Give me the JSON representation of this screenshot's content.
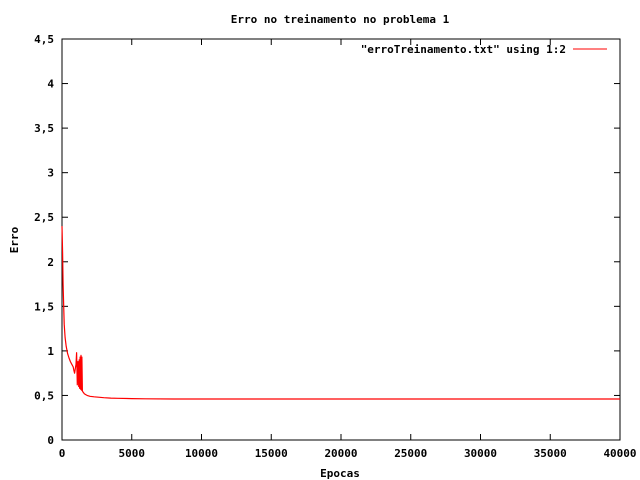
{
  "chart_data": {
    "type": "line",
    "title": "Erro no treinamento no problema 1",
    "xlabel": "Epocas",
    "ylabel": "Erro",
    "xlim": [
      0,
      40000
    ],
    "ylim": [
      0,
      4.5
    ],
    "xticks": [
      0,
      5000,
      10000,
      15000,
      20000,
      25000,
      30000,
      35000,
      40000
    ],
    "xtick_labels": [
      "0",
      "5000",
      "10000",
      "15000",
      "20000",
      "25000",
      "30000",
      "35000",
      "40000"
    ],
    "yticks": [
      0,
      0.5,
      1,
      1.5,
      2,
      2.5,
      3,
      3.5,
      4,
      4.5
    ],
    "ytick_labels": [
      "0",
      "0,5",
      "1",
      "1,5",
      "2",
      "2,5",
      "3",
      "3,5",
      "4",
      "4,5"
    ],
    "grid": false,
    "legend_position": "top-right",
    "series": [
      {
        "name": "\"erroTreinamento.txt\" using 1:2",
        "color": "#ff0000",
        "x": [
          0,
          40,
          80,
          120,
          160,
          220,
          300,
          400,
          500,
          600,
          700,
          800,
          850,
          900,
          950,
          1000,
          1050,
          1100,
          1150,
          1200,
          1230,
          1260,
          1300,
          1330,
          1360,
          1400,
          1430,
          1460,
          1500,
          1550,
          1600,
          1700,
          1800,
          2000,
          2300,
          2600,
          3000,
          3500,
          4000,
          5000,
          6000,
          8000,
          12000,
          20000,
          30000,
          40000
        ],
        "y": [
          2.4,
          2.1,
          1.75,
          1.5,
          1.3,
          1.15,
          1.05,
          0.97,
          0.92,
          0.88,
          0.85,
          0.82,
          0.78,
          0.75,
          0.8,
          0.85,
          0.98,
          0.62,
          0.88,
          0.6,
          0.9,
          0.58,
          0.93,
          0.57,
          0.95,
          0.56,
          0.93,
          0.55,
          0.54,
          0.53,
          0.52,
          0.51,
          0.5,
          0.49,
          0.485,
          0.48,
          0.475,
          0.47,
          0.468,
          0.465,
          0.462,
          0.46,
          0.46,
          0.46,
          0.46,
          0.46
        ]
      }
    ]
  }
}
